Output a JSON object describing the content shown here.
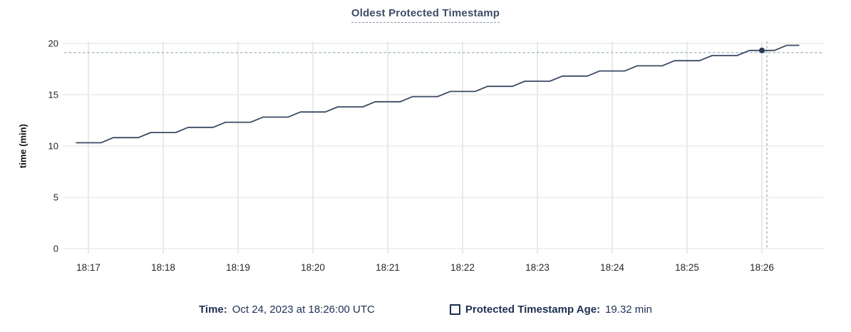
{
  "title": "Oldest Protected Timestamp",
  "y_axis": {
    "label": "time (min)"
  },
  "footer": {
    "time_label": "Time:",
    "time_value": "Oct 24, 2023 at 18:26:00 UTC",
    "series_label": "Protected Timestamp Age:",
    "series_value": "19.32 min"
  },
  "colors": {
    "title": "#3e4c66",
    "footer_text": "#1c3053",
    "line": "#3b4a63",
    "dot": "#2d3c55",
    "grid": "#ececec",
    "grid_vertical": "#e9e9e9",
    "crosshair": "#a4b9c3",
    "tick_text": "#262626"
  },
  "chart_data": {
    "type": "line",
    "title": "Oldest Protected Timestamp",
    "ylabel": "time (min)",
    "xlabel": "",
    "ylim": [
      0,
      20
    ],
    "y_ticks": [
      0,
      5,
      10,
      15,
      20
    ],
    "x_ticks": [
      "18:17",
      "18:18",
      "18:19",
      "18:20",
      "18:21",
      "18:22",
      "18:23",
      "18:24",
      "18:25",
      "18:26"
    ],
    "x_start": "18:16:50",
    "x_interval_sec": 10,
    "grid": true,
    "legend_position": "bottom",
    "series": [
      {
        "name": "Protected Timestamp Age",
        "values": [
          10.32,
          10.32,
          10.32,
          10.82,
          10.82,
          10.82,
          11.32,
          11.32,
          11.32,
          11.82,
          11.82,
          11.82,
          12.32,
          12.32,
          12.32,
          12.82,
          12.82,
          12.82,
          13.32,
          13.32,
          13.32,
          13.82,
          13.82,
          13.82,
          14.32,
          14.32,
          14.32,
          14.82,
          14.82,
          14.82,
          15.32,
          15.32,
          15.32,
          15.82,
          15.82,
          15.82,
          16.32,
          16.32,
          16.32,
          16.82,
          16.82,
          16.82,
          17.32,
          17.32,
          17.32,
          17.82,
          17.82,
          17.82,
          18.32,
          18.32,
          18.32,
          18.82,
          18.82,
          18.82,
          19.32,
          19.32,
          19.32,
          19.82,
          19.82
        ]
      }
    ],
    "hover_point": {
      "time": "18:26:00",
      "value": 19.32
    }
  }
}
